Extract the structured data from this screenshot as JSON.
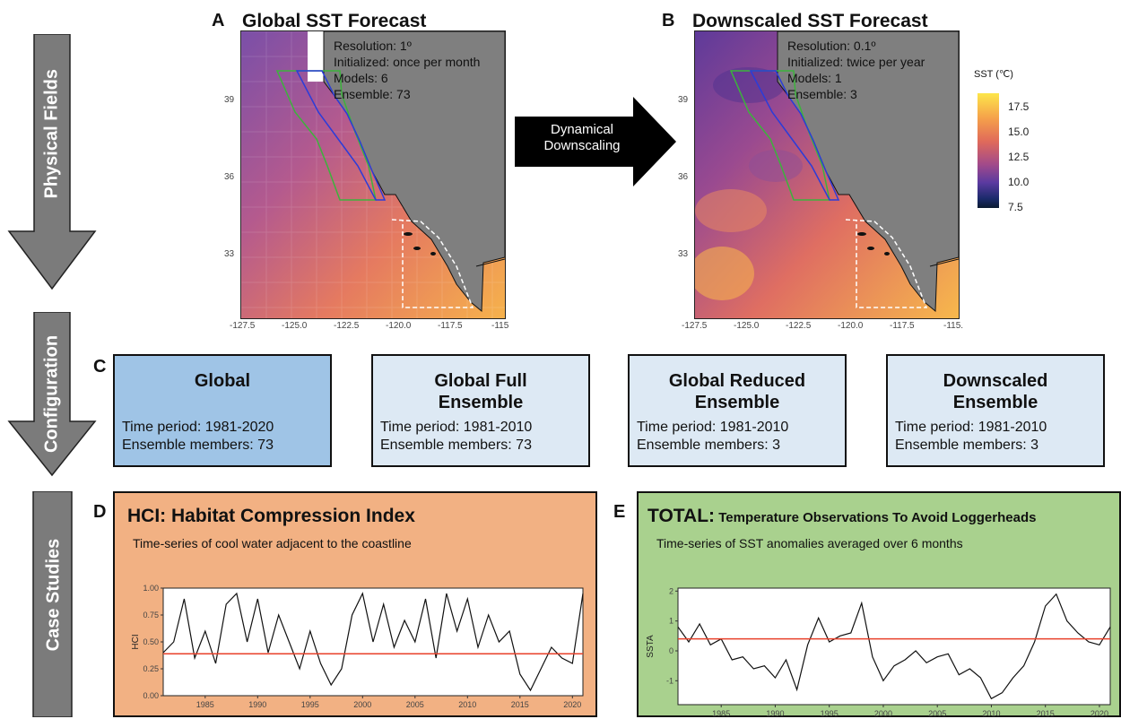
{
  "side_labels": {
    "physical": "Physical Fields",
    "configuration": "Configuration",
    "case_studies": "Case Studies"
  },
  "panels": {
    "A": {
      "letter": "A",
      "title": "Global SST Forecast",
      "info": [
        "Resolution: 1º",
        "Initialized: once per month",
        "Models: 6",
        "Ensemble: 73"
      ]
    },
    "B": {
      "letter": "B",
      "title": "Downscaled SST Forecast",
      "info": [
        "Resolution: 0.1º",
        "Initialized: twice per year",
        "Models: 1",
        "Ensemble: 3"
      ]
    }
  },
  "map_axes": {
    "x_ticks_a": [
      "-127.5",
      "-125.0",
      "-122.5",
      "-120.0",
      "-117.5",
      "-115"
    ],
    "x_ticks_b": [
      "-127.5",
      "-125.0",
      "-122.5",
      "-120.0",
      "-117.5",
      "-115."
    ],
    "y_ticks": [
      "39",
      "36",
      "33"
    ]
  },
  "downscaling_arrow": {
    "line1": "Dynamical",
    "line2": "Downscaling"
  },
  "legend": {
    "title": "SST (℃)",
    "ticks": [
      "17.5",
      "15.0",
      "12.5",
      "10.0",
      "7.5"
    ],
    "colors": [
      "#fde64a",
      "#f5a04a",
      "#e06a5a",
      "#a24a8a",
      "#5a3aa0",
      "#1a2a6a",
      "#0a1a30"
    ]
  },
  "config": {
    "letter": "C",
    "boxes": [
      {
        "title1": "Global",
        "title2": "",
        "period": "Time period: 1981-2020",
        "members": "Ensemble members: 73",
        "fill": "#9fc4e6"
      },
      {
        "title1": "Global Full",
        "title2": "Ensemble",
        "period": "Time period: 1981-2010",
        "members": "Ensemble members: 73",
        "fill": "#dde9f4"
      },
      {
        "title1": "Global Reduced",
        "title2": "Ensemble",
        "period": "Time period: 1981-2010",
        "members": "Ensemble members: 3",
        "fill": "#dde9f4"
      },
      {
        "title1": "Downscaled",
        "title2": "Ensemble",
        "period": "Time period: 1981-2010",
        "members": "Ensemble members: 3",
        "fill": "#dde9f4"
      }
    ]
  },
  "case_D": {
    "letter": "D",
    "title": "HCI: Habitat Compression Index",
    "subtitle": "Time-series of cool water adjacent to the coastline",
    "fill": "#f2b183"
  },
  "case_E": {
    "letter": "E",
    "title_bold": "TOTAL:",
    "title_rest": " Temperature Observations To Avoid Loggerheads",
    "subtitle": "Time-series of SST anomalies averaged over 6 months",
    "fill": "#a9d18e"
  },
  "chart_data": [
    {
      "type": "line",
      "ylabel": "HCI",
      "ylim": [
        0,
        1
      ],
      "xlim": [
        1981,
        2021
      ],
      "y_ticks": [
        "1.00",
        "0.75",
        "0.50",
        "0.25",
        "0.00"
      ],
      "x_ticks": [
        "1985",
        "1990",
        "1995",
        "2000",
        "2005",
        "2010",
        "2015",
        "2020"
      ],
      "reference_line": 0.39,
      "x": [
        1981,
        1982,
        1983,
        1984,
        1985,
        1986,
        1987,
        1988,
        1989,
        1990,
        1991,
        1992,
        1993,
        1994,
        1995,
        1996,
        1997,
        1998,
        1999,
        2000,
        2001,
        2002,
        2003,
        2004,
        2005,
        2006,
        2007,
        2008,
        2009,
        2010,
        2011,
        2012,
        2013,
        2014,
        2015,
        2016,
        2017,
        2018,
        2019,
        2020,
        2021
      ],
      "y": [
        0.4,
        0.5,
        0.9,
        0.35,
        0.6,
        0.3,
        0.85,
        0.95,
        0.5,
        0.9,
        0.4,
        0.75,
        0.5,
        0.25,
        0.6,
        0.3,
        0.1,
        0.25,
        0.75,
        0.95,
        0.5,
        0.85,
        0.45,
        0.7,
        0.5,
        0.9,
        0.35,
        0.95,
        0.6,
        0.9,
        0.45,
        0.75,
        0.5,
        0.6,
        0.2,
        0.05,
        0.25,
        0.45,
        0.35,
        0.3,
        0.95
      ]
    },
    {
      "type": "line",
      "ylabel": "SSTA",
      "ylim": [
        -1.8,
        2.1
      ],
      "xlim": [
        1981,
        2021
      ],
      "y_ticks": [
        "2",
        "1",
        "0",
        "-1"
      ],
      "x_ticks": [
        "1985",
        "1990",
        "1995",
        "2000",
        "2005",
        "2010",
        "2015",
        "2020"
      ],
      "reference_line": 0.4,
      "x": [
        1981,
        1982,
        1983,
        1984,
        1985,
        1986,
        1987,
        1988,
        1989,
        1990,
        1991,
        1992,
        1993,
        1994,
        1995,
        1996,
        1997,
        1998,
        1999,
        2000,
        2001,
        2002,
        2003,
        2004,
        2005,
        2006,
        2007,
        2008,
        2009,
        2010,
        2011,
        2012,
        2013,
        2014,
        2015,
        2016,
        2017,
        2018,
        2019,
        2020,
        2021
      ],
      "y": [
        0.8,
        0.3,
        0.9,
        0.2,
        0.4,
        -0.3,
        -0.2,
        -0.6,
        -0.5,
        -0.9,
        -0.3,
        -1.3,
        0.2,
        1.1,
        0.3,
        0.5,
        0.6,
        1.6,
        -0.2,
        -1.0,
        -0.5,
        -0.3,
        0.0,
        -0.4,
        -0.2,
        -0.1,
        -0.8,
        -0.6,
        -0.9,
        -1.6,
        -1.4,
        -0.9,
        -0.5,
        0.3,
        1.5,
        1.9,
        1.0,
        0.6,
        0.3,
        0.2,
        0.8
      ]
    }
  ]
}
